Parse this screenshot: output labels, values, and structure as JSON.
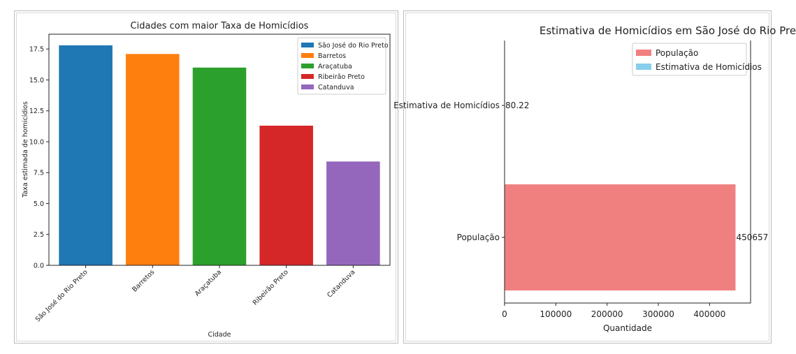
{
  "chart_data": [
    {
      "type": "bar",
      "title": "Cidades com maior Taxa de Homicídios",
      "xlabel": "Cidade",
      "ylabel": "Taxa estimada de homicídios",
      "categories": [
        "São José do Rio Preto",
        "Barretos",
        "Araçatuba",
        "Ribeirão Preto",
        "Catanduva"
      ],
      "values": [
        17.8,
        17.1,
        16.0,
        11.3,
        8.4
      ],
      "colors": [
        "#1f77b4",
        "#ff7f0e",
        "#2ca02c",
        "#d62728",
        "#9467bd"
      ],
      "ylim": [
        0,
        18.7
      ],
      "yticks": [
        "0.0",
        "2.5",
        "5.0",
        "7.5",
        "10.0",
        "12.5",
        "15.0",
        "17.5"
      ],
      "legend": [
        "São José do Rio Preto",
        "Barretos",
        "Araçatuba",
        "Ribeirão Preto",
        "Catanduva"
      ],
      "legend_position": "top-right",
      "grid": false
    },
    {
      "type": "bar",
      "orientation": "horizontal",
      "title": "Estimativa de Homicídios em São José do Rio Preto",
      "xlabel": "Quantidade",
      "ylabel": "",
      "categories": [
        "População",
        "Estimativa de Homicídios"
      ],
      "values": [
        450657,
        80.22
      ],
      "value_labels": [
        "450657",
        "80.22"
      ],
      "colors": [
        "#f08080",
        "#87ceeb"
      ],
      "xlim": [
        0,
        480000
      ],
      "xticks": [
        "0",
        "100000",
        "200000",
        "300000",
        "400000"
      ],
      "legend": [
        "População",
        "Estimativa de Homicídios"
      ],
      "legend_position": "top-right",
      "grid": false
    }
  ]
}
